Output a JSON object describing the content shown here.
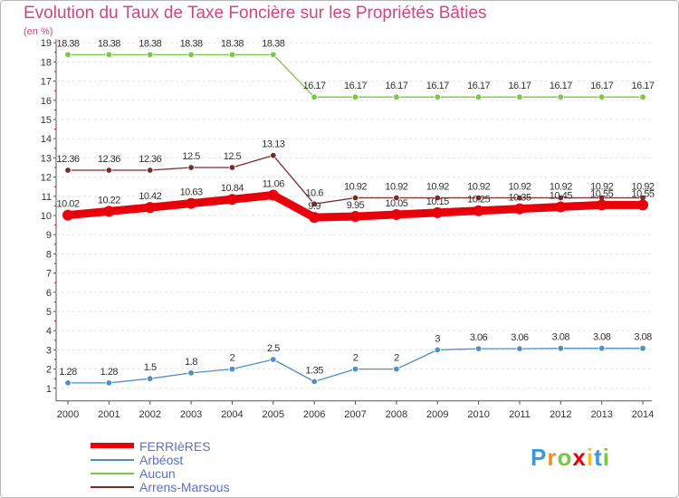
{
  "chart_data": {
    "type": "line",
    "title": "Evolution du Taux de Taxe Foncière sur les Propriétés Bâties",
    "subtitle": "(en %)",
    "xlabel": "",
    "ylabel": "",
    "ylim": [
      1,
      19
    ],
    "y_ticks": [
      "1",
      "2",
      "3",
      "4",
      "5",
      "6",
      "7",
      "8",
      "9",
      "10",
      "11",
      "12",
      "13",
      "14",
      "15",
      "16",
      "17",
      "18",
      "19"
    ],
    "x": [
      "2000",
      "2001",
      "2002",
      "2003",
      "2004",
      "2005",
      "2006",
      "2007",
      "2008",
      "2009",
      "2010",
      "2011",
      "2012",
      "2013",
      "2014"
    ],
    "series": [
      {
        "name": "FERRIèRES",
        "color": "#e8000b",
        "emphasis": true,
        "values": [
          10.02,
          10.22,
          10.42,
          10.63,
          10.84,
          11.06,
          9.9,
          9.95,
          10.05,
          10.15,
          10.25,
          10.35,
          10.45,
          10.55,
          10.55
        ],
        "labels": [
          "10.02",
          "10.22",
          "10.42",
          "10.63",
          "10.84",
          "11.06",
          "9.9",
          "9.95",
          "10.05",
          "10.15",
          "10.25",
          "10.35",
          "10.45",
          "10.55",
          "10.55"
        ]
      },
      {
        "name": "Arbéost",
        "color": "#4f8fc8",
        "values": [
          1.28,
          1.28,
          1.5,
          1.8,
          2,
          2.5,
          1.35,
          2,
          2,
          3,
          3.06,
          3.06,
          3.08,
          3.08,
          3.08
        ],
        "labels": [
          "1.28",
          "1.28",
          "1.5",
          "1.8",
          "2",
          "2.5",
          "1.35",
          "2",
          "2",
          "3",
          "3.06",
          "3.06",
          "3.08",
          "3.08",
          "3.08"
        ]
      },
      {
        "name": "Aucun",
        "color": "#7ac943",
        "values": [
          18.38,
          18.38,
          18.38,
          18.38,
          18.38,
          18.38,
          16.17,
          16.17,
          16.17,
          16.17,
          16.17,
          16.17,
          16.17,
          16.17,
          16.17
        ],
        "labels": [
          "18.38",
          "18.38",
          "18.38",
          "18.38",
          "18.38",
          "18.38",
          "16.17",
          "16.17",
          "16.17",
          "16.17",
          "16.17",
          "16.17",
          "16.17",
          "16.17",
          "16.17"
        ]
      },
      {
        "name": "Arrens-Marsous",
        "color": "#7a2b2b",
        "values": [
          12.36,
          12.36,
          12.36,
          12.5,
          12.5,
          13.13,
          10.6,
          10.92,
          10.92,
          10.92,
          10.92,
          10.92,
          10.92,
          10.92,
          10.92
        ],
        "labels": [
          "12.36",
          "12.36",
          "12.36",
          "12.5",
          "12.5",
          "13.13",
          "10.6",
          "10.92",
          "10.92",
          "10.92",
          "10.92",
          "10.92",
          "10.92",
          "10.92",
          "10.92"
        ]
      }
    ]
  },
  "legend": {
    "items": [
      {
        "label": "FERRIèRES",
        "color": "#e8000b"
      },
      {
        "label": "Arbéost",
        "color": "#4f8fc8"
      },
      {
        "label": "Aucun",
        "color": "#7ac943"
      },
      {
        "label": "Arrens-Marsous",
        "color": "#7a2b2b"
      }
    ]
  },
  "logo": {
    "letters": [
      "P",
      "r",
      "o",
      "x",
      "i",
      "t",
      "i"
    ],
    "colors": [
      "#3a9ad9",
      "#f28c28",
      "#7ac943",
      "#e8000b",
      "#f2c12e",
      "#3a9ad9",
      "#7ac943"
    ]
  }
}
